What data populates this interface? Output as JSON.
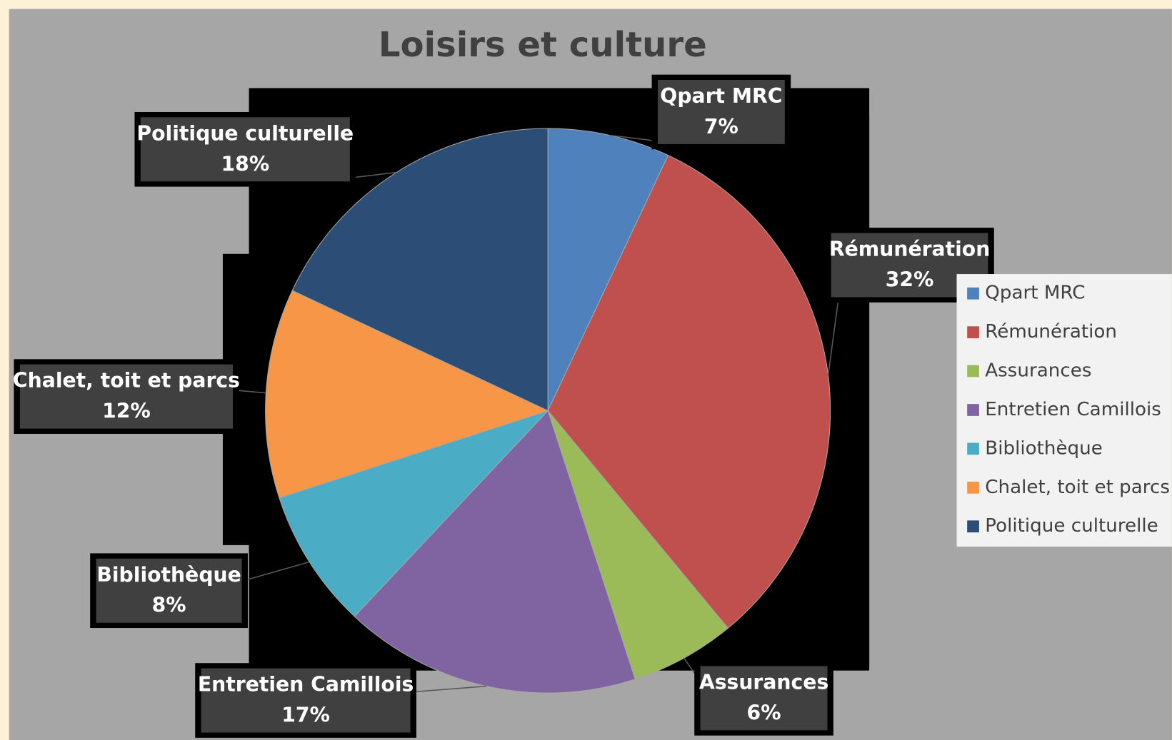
{
  "chart_data": {
    "type": "pie",
    "title": "Loisirs et culture",
    "categories": [
      "Qpart MRC",
      "Rémunération",
      "Assurances",
      "Entretien Camillois",
      "Bibliothèque",
      "Chalet, toit et parcs",
      "Politique culturelle"
    ],
    "values": [
      7,
      32,
      6,
      17,
      8,
      12,
      18
    ],
    "value_labels": [
      "7%",
      "32%",
      "6%",
      "17%",
      "8%",
      "12%",
      "18%"
    ],
    "colors": [
      "#4f81bd",
      "#c0504d",
      "#9bbb59",
      "#8064a2",
      "#4bacc6",
      "#f79646",
      "#2c4d75"
    ],
    "legend": "right"
  }
}
